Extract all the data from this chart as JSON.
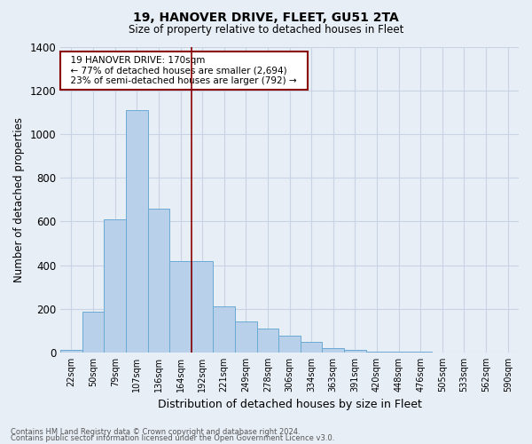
{
  "title_line1": "19, HANOVER DRIVE, FLEET, GU51 2TA",
  "title_line2": "Size of property relative to detached houses in Fleet",
  "xlabel": "Distribution of detached houses by size in Fleet",
  "ylabel": "Number of detached properties",
  "footnote1": "Contains HM Land Registry data © Crown copyright and database right 2024.",
  "footnote2": "Contains public sector information licensed under the Open Government Licence v3.0.",
  "annotation_title": "19 HANOVER DRIVE: 170sqm",
  "annotation_line1": "← 77% of detached houses are smaller (2,694)",
  "annotation_line2": "23% of semi-detached houses are larger (792) →",
  "bar_labels": [
    "22sqm",
    "50sqm",
    "79sqm",
    "107sqm",
    "136sqm",
    "164sqm",
    "192sqm",
    "221sqm",
    "249sqm",
    "278sqm",
    "306sqm",
    "334sqm",
    "363sqm",
    "391sqm",
    "420sqm",
    "448sqm",
    "476sqm",
    "505sqm",
    "533sqm",
    "562sqm",
    "590sqm"
  ],
  "bar_values": [
    10,
    185,
    610,
    1110,
    660,
    420,
    420,
    210,
    140,
    110,
    75,
    50,
    20,
    10,
    5,
    3,
    2,
    1,
    0,
    0,
    0
  ],
  "bar_color": "#b8d0ea",
  "bar_edge_color": "#6aaad4",
  "vline_x": 5.5,
  "vline_color": "#8b0000",
  "ylim": [
    0,
    1400
  ],
  "yticks": [
    0,
    200,
    400,
    600,
    800,
    1000,
    1200,
    1400
  ],
  "annotation_box_color": "white",
  "annotation_box_edge": "#8b0000",
  "grid_color": "#c8d4e4",
  "bg_color": "#e8eef6"
}
